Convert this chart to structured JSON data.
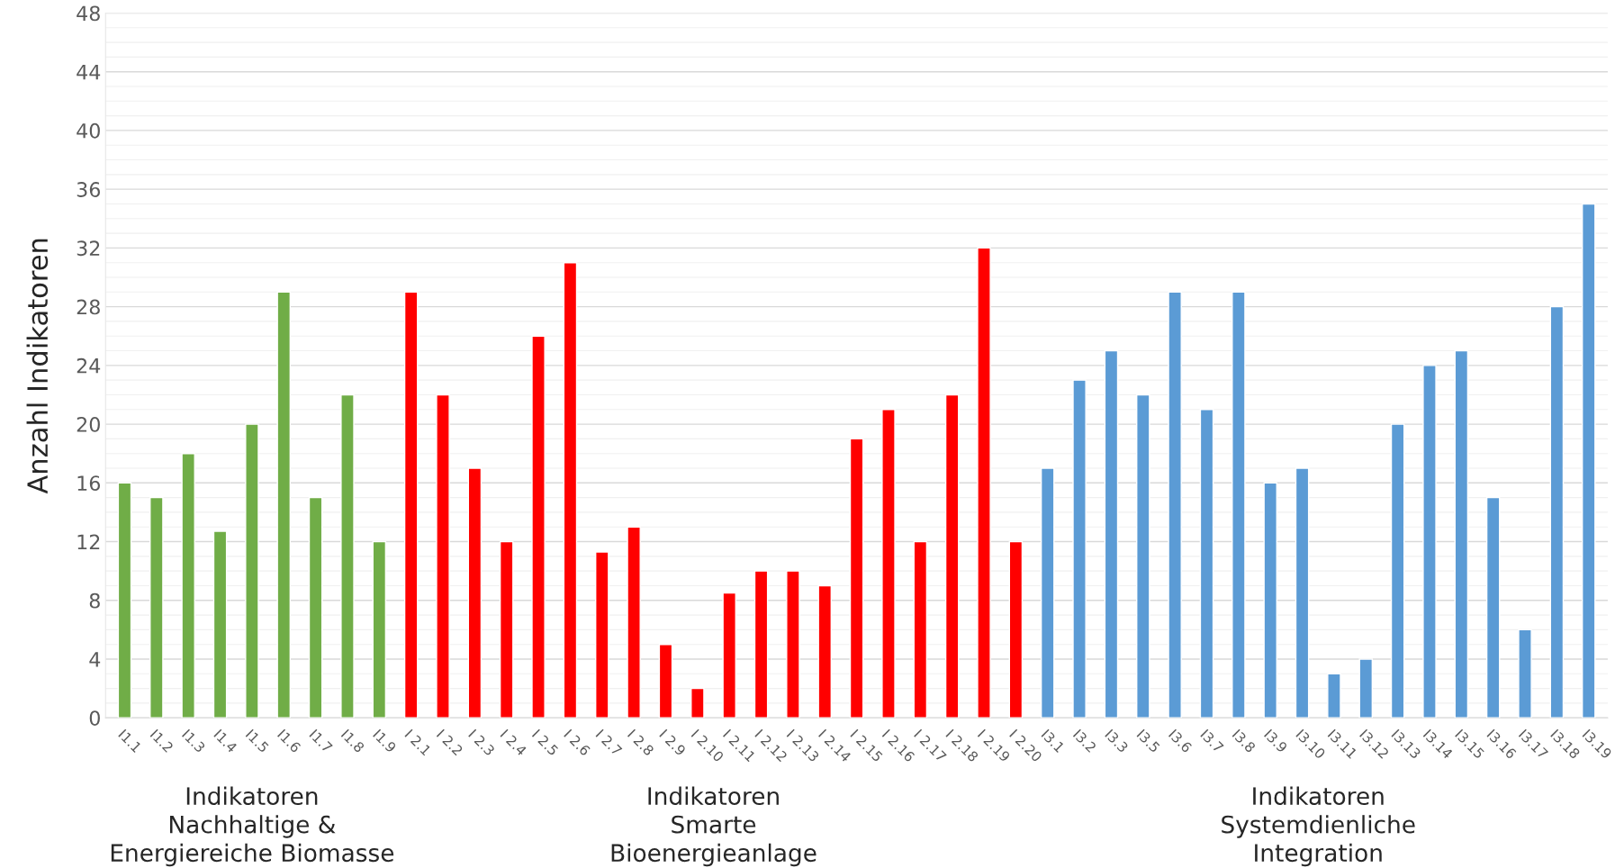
{
  "chart_data": {
    "type": "bar",
    "ylabel": "Anzahl Indikatoren",
    "categories": [
      "I1.1",
      "I1.2",
      "I1.3",
      "I1.4",
      "I1.5",
      "I1.6",
      "I1.7",
      "I1.8",
      "I1.9",
      "I 2.1",
      "I 2.2",
      "I 2.3",
      "I 2.4",
      "I 2.5",
      "I 2.6",
      "I 2.7",
      "I 2.8",
      "I 2.9",
      "I 2.10",
      "I 2.11",
      "I 2.12",
      "I 2.13",
      "I 2.14",
      "I 2.15",
      "I 2.16",
      "I 2.17",
      "I 2.18",
      "I 2.19",
      "I 2.20",
      "I3.1",
      "I3.2",
      "I3.3",
      "I3.5",
      "I3.6",
      "I3.7",
      "I3.8",
      "I3.9",
      "I3.10",
      "I3.11",
      "I3.12",
      "I3.13",
      "I3.14",
      "I3.15",
      "I3.16",
      "I3.17",
      "I3.18",
      "I3.19"
    ],
    "values": [
      16,
      15,
      18,
      12.7,
      20,
      29,
      15,
      22,
      12,
      29,
      22,
      17,
      12,
      26,
      31,
      11.3,
      13,
      5,
      2,
      8.5,
      10,
      10,
      9,
      19,
      21,
      12,
      22,
      32,
      12,
      17,
      23,
      25,
      22,
      29,
      21,
      29,
      16,
      17,
      3,
      4,
      20,
      24,
      25,
      15,
      6,
      28,
      35
    ],
    "colors": [
      "#70ad47",
      "#70ad47",
      "#70ad47",
      "#70ad47",
      "#70ad47",
      "#70ad47",
      "#70ad47",
      "#70ad47",
      "#70ad47",
      "#ff0000",
      "#ff0000",
      "#ff0000",
      "#ff0000",
      "#ff0000",
      "#ff0000",
      "#ff0000",
      "#ff0000",
      "#ff0000",
      "#ff0000",
      "#ff0000",
      "#ff0000",
      "#ff0000",
      "#ff0000",
      "#ff0000",
      "#ff0000",
      "#ff0000",
      "#ff0000",
      "#ff0000",
      "#ff0000",
      "#5b9bd5",
      "#5b9bd5",
      "#5b9bd5",
      "#5b9bd5",
      "#5b9bd5",
      "#5b9bd5",
      "#5b9bd5",
      "#5b9bd5",
      "#5b9bd5",
      "#5b9bd5",
      "#5b9bd5",
      "#5b9bd5",
      "#5b9bd5",
      "#5b9bd5",
      "#5b9bd5",
      "#5b9bd5",
      "#5b9bd5",
      "#5b9bd5"
    ],
    "ylim": [
      0,
      48
    ],
    "yticks": [
      0,
      4,
      8,
      12,
      16,
      20,
      24,
      28,
      32,
      36,
      40,
      44,
      48
    ],
    "grid": "y",
    "legend": false,
    "annotations": [
      "Indikatoren\nNachhaltige &\nEnergiereiche Biomasse",
      "Indikatoren\nSmarte\nBioenergieanlage",
      "Indikatoren\nSystemdienliche\nIntegration"
    ]
  }
}
